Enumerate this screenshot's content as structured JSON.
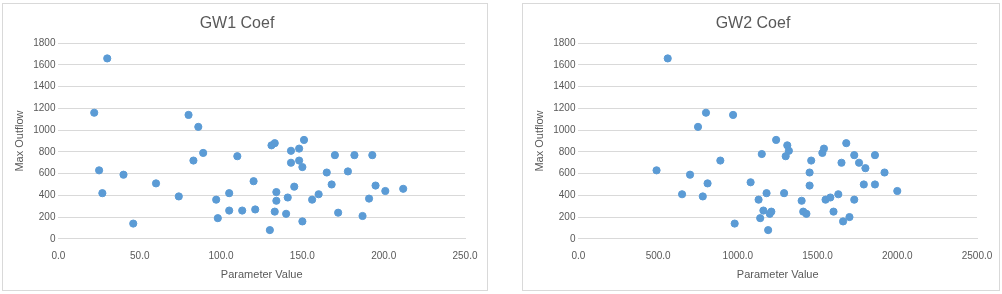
{
  "chart_data": [
    {
      "type": "scatter",
      "title": "GW1 Coef",
      "x_label": "Parameter Value",
      "y_label": "Max Outflow",
      "color": "#5b9bd5",
      "marker": "circle",
      "grid": true,
      "x": [
        22,
        30,
        25,
        27,
        40,
        46,
        60,
        74,
        80,
        83,
        86,
        89,
        97,
        98,
        105,
        105,
        110,
        113,
        120,
        121,
        130,
        131,
        133,
        134,
        134,
        133,
        140,
        141,
        143,
        143,
        145,
        148,
        148,
        150,
        150,
        151,
        156,
        160,
        165,
        168,
        170,
        172,
        178,
        182,
        187,
        191,
        193,
        195,
        201,
        212
      ],
      "values": [
        1160,
        1660,
        630,
        420,
        590,
        140,
        510,
        390,
        1140,
        720,
        1030,
        790,
        360,
        190,
        260,
        420,
        760,
        260,
        530,
        270,
        80,
        860,
        880,
        430,
        350,
        250,
        230,
        380,
        810,
        700,
        480,
        830,
        720,
        660,
        160,
        910,
        360,
        410,
        610,
        500,
        770,
        240,
        620,
        770,
        210,
        370,
        770,
        490,
        440,
        460
      ],
      "xlim": [
        0,
        250
      ],
      "xticks": [
        {
          "value": 0,
          "label": "0.0"
        },
        {
          "value": 50,
          "label": "50.0"
        },
        {
          "value": 100,
          "label": "100.0"
        },
        {
          "value": 150,
          "label": "150.0"
        },
        {
          "value": 200,
          "label": "200.0"
        },
        {
          "value": 250,
          "label": "250.0"
        }
      ],
      "ylim": [
        0,
        1800
      ],
      "yticks": [
        0,
        200,
        400,
        600,
        800,
        1000,
        1200,
        1400,
        1600,
        1800
      ]
    },
    {
      "type": "scatter",
      "title": "GW2 Coef",
      "x_label": "Parameter Value",
      "y_label": "Max Outflow",
      "color": "#5b9bd5",
      "marker": "circle",
      "grid": true,
      "x": [
        490,
        560,
        650,
        700,
        750,
        780,
        800,
        810,
        890,
        970,
        980,
        1080,
        1130,
        1140,
        1150,
        1160,
        1180,
        1190,
        1200,
        1210,
        1240,
        1290,
        1300,
        1310,
        1320,
        1400,
        1410,
        1430,
        1450,
        1450,
        1460,
        1530,
        1540,
        1550,
        1580,
        1600,
        1630,
        1650,
        1660,
        1680,
        1700,
        1730,
        1730,
        1760,
        1790,
        1800,
        1860,
        1860,
        1920,
        2000
      ],
      "values": [
        630,
        1660,
        410,
        590,
        1030,
        390,
        1160,
        510,
        720,
        1140,
        140,
        520,
        360,
        190,
        780,
        260,
        420,
        80,
        230,
        250,
        910,
        420,
        760,
        860,
        810,
        350,
        250,
        230,
        490,
        610,
        720,
        790,
        830,
        360,
        380,
        250,
        410,
        700,
        160,
        880,
        200,
        770,
        360,
        700,
        500,
        650,
        770,
        500,
        610,
        440
      ],
      "xlim": [
        0,
        2500
      ],
      "xticks": [
        {
          "value": 0,
          "label": "0.0"
        },
        {
          "value": 500,
          "label": "500.0"
        },
        {
          "value": 1000,
          "label": "1000.0"
        },
        {
          "value": 1500,
          "label": "1500.0"
        },
        {
          "value": 2000,
          "label": "2000.0"
        },
        {
          "value": 2500,
          "label": "2500.0"
        }
      ],
      "ylim": [
        0,
        1800
      ],
      "yticks": [
        0,
        200,
        400,
        600,
        800,
        1000,
        1200,
        1400,
        1600,
        1800
      ]
    }
  ]
}
